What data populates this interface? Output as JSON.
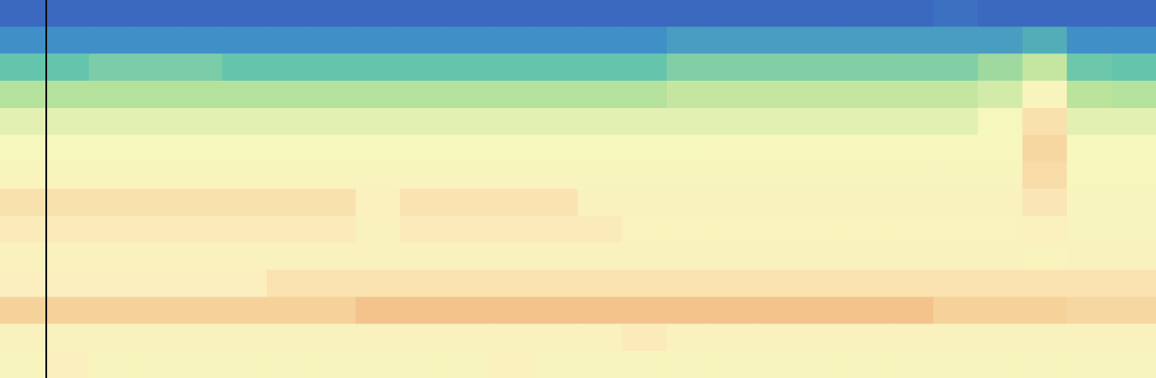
{
  "chart_data": {
    "type": "heatmap",
    "tick_labels": false,
    "grid": false,
    "value_range": [
      0,
      1
    ],
    "cells": [
      [
        0.03,
        0.03,
        0.03,
        0.03,
        0.03,
        0.03,
        0.03,
        0.03,
        0.03,
        0.03,
        0.03,
        0.03,
        0.03,
        0.03,
        0.03,
        0.03,
        0.03,
        0.03,
        0.03,
        0.03,
        0.03,
        0.05,
        0.03,
        0.03,
        0.03,
        0.03
      ],
      [
        0.13,
        0.13,
        0.13,
        0.13,
        0.13,
        0.13,
        0.13,
        0.13,
        0.13,
        0.13,
        0.13,
        0.13,
        0.13,
        0.13,
        0.13,
        0.16,
        0.16,
        0.16,
        0.16,
        0.16,
        0.16,
        0.16,
        0.16,
        0.2,
        0.13,
        0.13
      ],
      [
        0.26,
        0.26,
        0.29,
        0.29,
        0.29,
        0.26,
        0.26,
        0.26,
        0.26,
        0.26,
        0.26,
        0.26,
        0.26,
        0.26,
        0.26,
        0.3,
        0.3,
        0.3,
        0.3,
        0.3,
        0.3,
        0.3,
        0.34,
        0.4,
        0.27,
        0.26
      ],
      [
        0.37,
        0.37,
        0.37,
        0.37,
        0.37,
        0.37,
        0.37,
        0.37,
        0.37,
        0.37,
        0.37,
        0.37,
        0.37,
        0.37,
        0.37,
        0.4,
        0.4,
        0.4,
        0.4,
        0.4,
        0.4,
        0.4,
        0.43,
        0.55,
        0.38,
        0.37
      ],
      [
        0.46,
        0.46,
        0.46,
        0.46,
        0.46,
        0.46,
        0.46,
        0.46,
        0.46,
        0.46,
        0.46,
        0.46,
        0.46,
        0.46,
        0.46,
        0.46,
        0.46,
        0.46,
        0.46,
        0.46,
        0.46,
        0.46,
        0.5,
        0.68,
        0.46,
        0.46
      ],
      [
        0.5,
        0.5,
        0.5,
        0.5,
        0.5,
        0.5,
        0.5,
        0.5,
        0.5,
        0.5,
        0.5,
        0.5,
        0.5,
        0.5,
        0.5,
        0.5,
        0.52,
        0.52,
        0.52,
        0.52,
        0.52,
        0.52,
        0.52,
        0.72,
        0.5,
        0.5
      ],
      [
        0.57,
        0.57,
        0.57,
        0.57,
        0.57,
        0.57,
        0.57,
        0.57,
        0.57,
        0.57,
        0.57,
        0.57,
        0.57,
        0.53,
        0.53,
        0.55,
        0.55,
        0.55,
        0.55,
        0.55,
        0.55,
        0.55,
        0.55,
        0.7,
        0.52,
        0.52
      ],
      [
        0.68,
        0.68,
        0.68,
        0.68,
        0.68,
        0.68,
        0.68,
        0.68,
        0.6,
        0.67,
        0.67,
        0.67,
        0.67,
        0.58,
        0.58,
        0.58,
        0.58,
        0.58,
        0.58,
        0.58,
        0.58,
        0.58,
        0.58,
        0.66,
        0.55,
        0.55
      ],
      [
        0.64,
        0.64,
        0.64,
        0.64,
        0.64,
        0.64,
        0.64,
        0.64,
        0.58,
        0.64,
        0.64,
        0.64,
        0.64,
        0.64,
        0.56,
        0.56,
        0.56,
        0.56,
        0.56,
        0.56,
        0.56,
        0.56,
        0.56,
        0.6,
        0.54,
        0.54
      ],
      [
        0.58,
        0.58,
        0.58,
        0.58,
        0.58,
        0.58,
        0.58,
        0.58,
        0.58,
        0.58,
        0.58,
        0.58,
        0.58,
        0.58,
        0.58,
        0.58,
        0.58,
        0.58,
        0.58,
        0.58,
        0.58,
        0.58,
        0.58,
        0.57,
        0.58,
        0.58
      ],
      [
        0.62,
        0.62,
        0.62,
        0.62,
        0.62,
        0.62,
        0.67,
        0.67,
        0.67,
        0.67,
        0.67,
        0.67,
        0.67,
        0.67,
        0.67,
        0.67,
        0.67,
        0.67,
        0.67,
        0.67,
        0.67,
        0.67,
        0.67,
        0.67,
        0.67,
        0.67
      ],
      [
        0.74,
        0.74,
        0.74,
        0.74,
        0.74,
        0.74,
        0.74,
        0.74,
        0.78,
        0.78,
        0.78,
        0.78,
        0.78,
        0.78,
        0.78,
        0.78,
        0.78,
        0.78,
        0.78,
        0.78,
        0.78,
        0.74,
        0.74,
        0.74,
        0.72,
        0.72
      ],
      [
        0.58,
        0.58,
        0.58,
        0.58,
        0.58,
        0.58,
        0.58,
        0.58,
        0.58,
        0.58,
        0.58,
        0.58,
        0.58,
        0.58,
        0.64,
        0.58,
        0.58,
        0.58,
        0.58,
        0.58,
        0.58,
        0.58,
        0.58,
        0.58,
        0.58,
        0.58
      ],
      [
        0.55,
        0.62,
        0.55,
        0.55,
        0.55,
        0.55,
        0.55,
        0.55,
        0.55,
        0.55,
        0.55,
        0.6,
        0.55,
        0.55,
        0.55,
        0.55,
        0.55,
        0.55,
        0.55,
        0.55,
        0.55,
        0.55,
        0.55,
        0.55,
        0.55,
        0.55
      ]
    ]
  }
}
